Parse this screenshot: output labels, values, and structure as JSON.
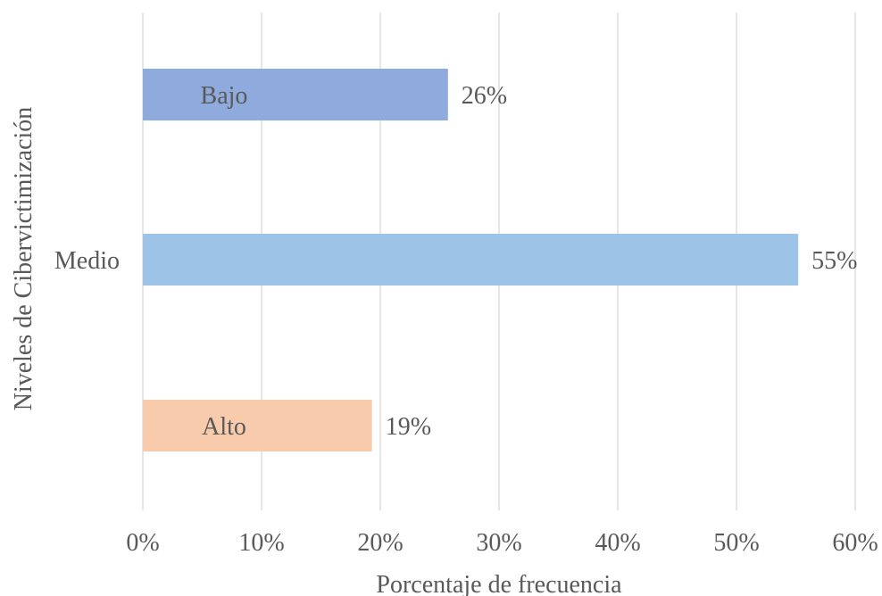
{
  "chart_data": {
    "type": "bar",
    "orientation": "horizontal",
    "title": "",
    "xlabel": "Porcentaje de frecuencia",
    "ylabel": "Niveles de Cibervictimización",
    "categories": [
      "Bajo",
      "Medio",
      "Alto"
    ],
    "values": [
      25.7,
      55.2,
      19.3
    ],
    "data_labels": [
      "26%",
      "55%",
      "19%"
    ],
    "colors": [
      "#8faadc",
      "#9dc3e6",
      "#f8cbad"
    ],
    "xlim": [
      0,
      60
    ],
    "xticks": [
      0,
      10,
      20,
      30,
      40,
      50,
      60
    ],
    "xtick_labels": [
      "0%",
      "10%",
      "20%",
      "30%",
      "40%",
      "50%",
      "60%"
    ],
    "grid": "vertical",
    "legend": "none"
  }
}
